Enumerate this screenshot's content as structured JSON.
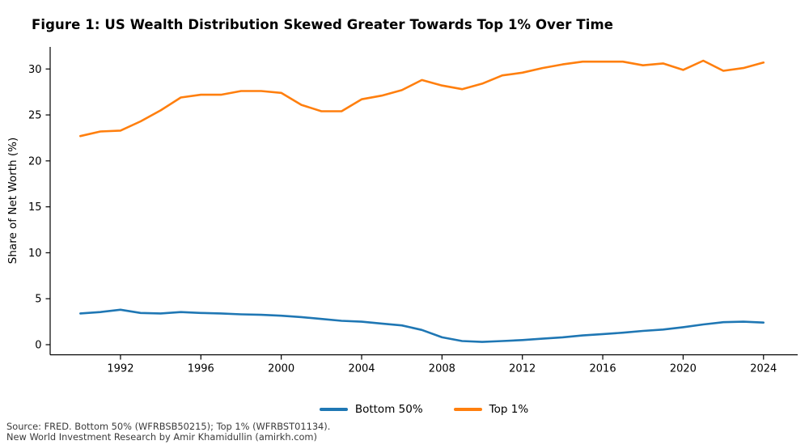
{
  "figure": {
    "title": "Figure 1: US Wealth Distribution Skewed Greater Towards Top 1% Over Time",
    "source_line1": "Source: FRED. Bottom 50% (WFRBSB50215); Top 1% (WFRBST01134).",
    "source_line2": "New World Investment Research by Amir Khamidullin (amirkh.com)"
  },
  "chart_data": {
    "type": "line",
    "title": "Figure 1: US Wealth Distribution Skewed Greater Towards Top 1% Over Time",
    "xlabel": "",
    "ylabel": "Share of Net Worth (%)",
    "x": [
      1990,
      1991,
      1992,
      1993,
      1994,
      1995,
      1996,
      1997,
      1998,
      1999,
      2000,
      2001,
      2002,
      2003,
      2004,
      2005,
      2006,
      2007,
      2008,
      2009,
      2010,
      2011,
      2012,
      2013,
      2014,
      2015,
      2016,
      2017,
      2018,
      2019,
      2020,
      2021,
      2022,
      2023,
      2024
    ],
    "series": [
      {
        "name": "Bottom 50%",
        "color": "#1f77b4",
        "values": [
          3.4,
          3.55,
          3.8,
          3.45,
          3.4,
          3.55,
          3.45,
          3.4,
          3.3,
          3.25,
          3.15,
          3.0,
          2.8,
          2.6,
          2.5,
          2.3,
          2.1,
          1.6,
          0.8,
          0.4,
          0.3,
          0.4,
          0.5,
          0.65,
          0.8,
          1.0,
          1.15,
          1.3,
          1.5,
          1.65,
          1.9,
          2.2,
          2.45,
          2.5,
          2.4
        ]
      },
      {
        "name": "Top 1%",
        "color": "#ff7f0e",
        "values": [
          22.7,
          23.2,
          23.3,
          24.3,
          25.5,
          26.9,
          27.2,
          27.2,
          27.6,
          27.6,
          27.4,
          26.1,
          25.4,
          25.4,
          26.7,
          27.1,
          27.7,
          28.8,
          28.2,
          27.8,
          28.4,
          29.3,
          29.6,
          30.1,
          30.5,
          30.8,
          30.8,
          30.8,
          30.4,
          30.6,
          29.9,
          30.9,
          29.8,
          30.1,
          30.7
        ]
      }
    ],
    "x_ticks": [
      1992,
      1996,
      2000,
      2004,
      2008,
      2012,
      2016,
      2020,
      2024
    ],
    "y_ticks": [
      0,
      5,
      10,
      15,
      20,
      25,
      30
    ],
    "xlim": [
      1988.5,
      2025.7
    ],
    "ylim": [
      -1.1,
      32.4
    ],
    "grid": false,
    "legend_position": "bottom-center"
  }
}
